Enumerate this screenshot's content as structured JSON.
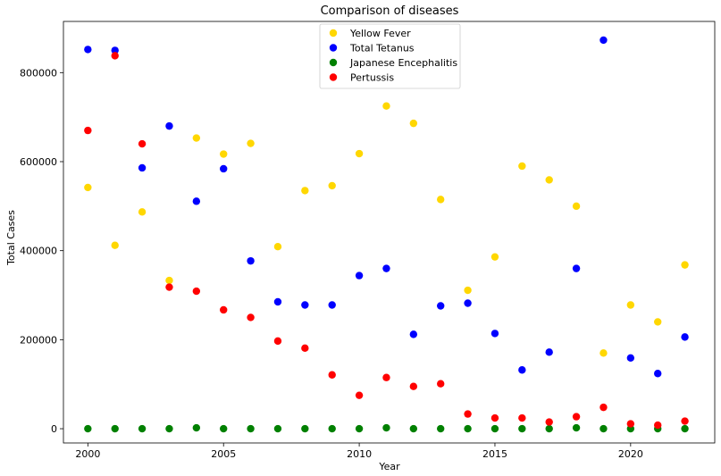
{
  "chart_data": {
    "type": "scatter",
    "title": "Comparison of diseases",
    "xlabel": "Year",
    "ylabel": "Total Cases",
    "xlim": [
      1999.1,
      2023.1
    ],
    "ylim": [
      -32000,
      915000
    ],
    "xticks": [
      2000,
      2005,
      2010,
      2015,
      2020
    ],
    "xtick_labels": [
      "2000",
      "2005",
      "2010",
      "2015",
      "2020"
    ],
    "yticks": [
      0,
      200000,
      400000,
      600000,
      800000
    ],
    "ytick_labels": [
      "0",
      "200000",
      "400000",
      "600000",
      "800000"
    ],
    "grid": false,
    "legend_position": "top-center",
    "x": [
      2000,
      2001,
      2002,
      2003,
      2004,
      2005,
      2006,
      2007,
      2008,
      2009,
      2010,
      2011,
      2012,
      2013,
      2014,
      2015,
      2016,
      2017,
      2018,
      2019,
      2020,
      2021,
      2022
    ],
    "series": [
      {
        "name": "Yellow Fever",
        "color": "#FFD700",
        "values": [
          542000,
          412000,
          487000,
          333000,
          653000,
          617000,
          641000,
          409000,
          535000,
          546000,
          618000,
          725000,
          686000,
          515000,
          311000,
          386000,
          590000,
          559000,
          500000,
          170000,
          278000,
          240000,
          368000
        ]
      },
      {
        "name": "Total Tetanus",
        "color": "#0000FF",
        "values": [
          852000,
          850000,
          586000,
          680000,
          511000,
          584000,
          377000,
          285000,
          278000,
          278000,
          344000,
          360000,
          212000,
          276000,
          282000,
          214000,
          132000,
          172000,
          360000,
          873000,
          159000,
          124000,
          206000
        ]
      },
      {
        "name": "Japanese Encephalitis",
        "color": "#008000",
        "values": [
          0,
          0,
          0,
          0,
          2000,
          0,
          0,
          0,
          0,
          0,
          0,
          2000,
          0,
          0,
          0,
          0,
          0,
          0,
          2000,
          0,
          0,
          0,
          0
        ]
      },
      {
        "name": "Pertussis",
        "color": "#FF0000",
        "values": [
          670000,
          838000,
          640000,
          318000,
          309000,
          267000,
          250000,
          197000,
          181000,
          121000,
          75000,
          115000,
          95000,
          101000,
          33000,
          24000,
          24000,
          15000,
          27000,
          48000,
          11000,
          8000,
          17000
        ]
      }
    ]
  }
}
